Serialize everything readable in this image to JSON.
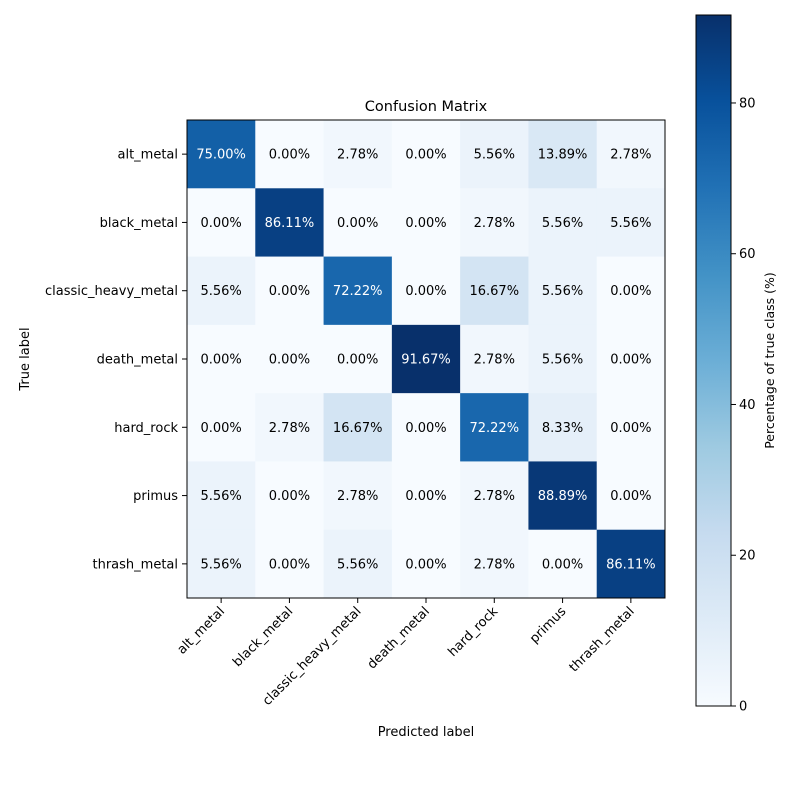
{
  "chart_data": {
    "type": "heatmap",
    "title": "Confusion Matrix",
    "xlabel": "Predicted label",
    "ylabel": "True label",
    "x_categories": [
      "alt_metal",
      "black_metal",
      "classic_heavy_metal",
      "death_metal",
      "hard_rock",
      "primus",
      "thrash_metal"
    ],
    "y_categories": [
      "alt_metal",
      "black_metal",
      "classic_heavy_metal",
      "death_metal",
      "hard_rock",
      "primus",
      "thrash_metal"
    ],
    "values": [
      [
        75.0,
        0.0,
        2.78,
        0.0,
        5.56,
        13.89,
        2.78
      ],
      [
        0.0,
        86.11,
        0.0,
        0.0,
        2.78,
        5.56,
        5.56
      ],
      [
        5.56,
        0.0,
        72.22,
        0.0,
        16.67,
        5.56,
        0.0
      ],
      [
        0.0,
        0.0,
        0.0,
        91.67,
        2.78,
        5.56,
        0.0
      ],
      [
        0.0,
        2.78,
        16.67,
        0.0,
        72.22,
        8.33,
        0.0
      ],
      [
        5.56,
        0.0,
        2.78,
        0.0,
        2.78,
        88.89,
        0.0
      ],
      [
        5.56,
        0.0,
        5.56,
        0.0,
        2.78,
        0.0,
        86.11
      ]
    ],
    "value_format": "percent_2dp",
    "colormap": "Blues",
    "color_range": [
      0,
      91.67
    ],
    "colorbar": {
      "label": "Percentage of true class (%)",
      "ticks": [
        0,
        20,
        40,
        60,
        80
      ]
    },
    "grid": false,
    "text_color_light": "#ffffff",
    "text_color_dark": "#000000"
  }
}
